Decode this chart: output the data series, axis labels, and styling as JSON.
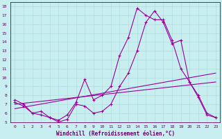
{
  "xlabel": "Windchill (Refroidissement éolien,°C)",
  "background_color": "#c8eef0",
  "line_color": "#990099",
  "grid_color": "#b0dde0",
  "axis_color": "#660066",
  "tick_color": "#660066",
  "xlim": [
    -0.5,
    23.5
  ],
  "ylim": [
    5,
    18.5
  ],
  "yticks": [
    5,
    6,
    7,
    8,
    9,
    10,
    11,
    12,
    13,
    14,
    15,
    16,
    17,
    18
  ],
  "xticks": [
    0,
    1,
    2,
    3,
    4,
    5,
    6,
    7,
    8,
    9,
    10,
    11,
    12,
    13,
    14,
    15,
    16,
    17,
    18,
    19,
    20,
    21,
    22,
    23
  ],
  "series_marked_1": {
    "x": [
      0,
      1,
      2,
      3,
      4,
      5,
      6,
      7,
      8,
      9,
      10,
      11,
      12,
      13,
      14,
      15,
      16,
      17,
      18,
      19,
      20,
      21,
      22,
      23
    ],
    "y": [
      7.5,
      7.0,
      6.0,
      6.2,
      5.5,
      5.2,
      5.8,
      7.2,
      9.8,
      7.5,
      8.0,
      9.0,
      12.5,
      14.5,
      17.8,
      17.0,
      16.5,
      16.5,
      14.2,
      11.0,
      9.5,
      8.0,
      6.0,
      5.5
    ]
  },
  "series_marked_2": {
    "x": [
      0,
      1,
      2,
      3,
      4,
      5,
      6,
      7,
      8,
      9,
      10,
      11,
      12,
      13,
      14,
      15,
      16,
      17,
      18,
      19,
      20,
      21,
      22,
      23
    ],
    "y": [
      7.2,
      6.8,
      6.0,
      5.8,
      5.5,
      5.0,
      5.3,
      7.0,
      6.8,
      6.0,
      6.2,
      7.0,
      9.0,
      10.5,
      13.0,
      16.2,
      17.5,
      16.2,
      13.8,
      14.2,
      9.5,
      7.8,
      5.8,
      5.5
    ]
  },
  "series_line_1": {
    "x": [
      0,
      23
    ],
    "y": [
      6.5,
      10.5
    ]
  },
  "series_line_2": {
    "x": [
      0,
      23
    ],
    "y": [
      7.0,
      9.5
    ]
  }
}
